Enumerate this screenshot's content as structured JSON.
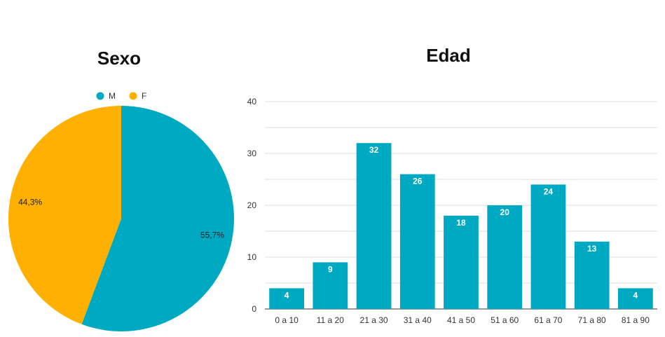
{
  "chart_data": [
    {
      "type": "pie",
      "title": "Sexo",
      "categories": [
        "M",
        "F"
      ],
      "values": [
        55.7,
        44.3
      ],
      "labels": [
        "55,7%",
        "44,3%"
      ],
      "colors": [
        "#00a9c2",
        "#ffb000"
      ],
      "legend": "top"
    },
    {
      "type": "bar",
      "title": "Edad",
      "categories": [
        "0 a 10",
        "11 a 20",
        "21 a 30",
        "31 a 40",
        "41 a 50",
        "51 a 60",
        "61 a 70",
        "71 a 80",
        "81 a 90"
      ],
      "values": [
        4,
        9,
        32,
        26,
        18,
        20,
        24,
        13,
        4
      ],
      "ylim": [
        0,
        40
      ],
      "yticks": [
        0,
        10,
        20,
        30,
        40
      ],
      "color": "#00a9c2",
      "grid": true
    }
  ]
}
